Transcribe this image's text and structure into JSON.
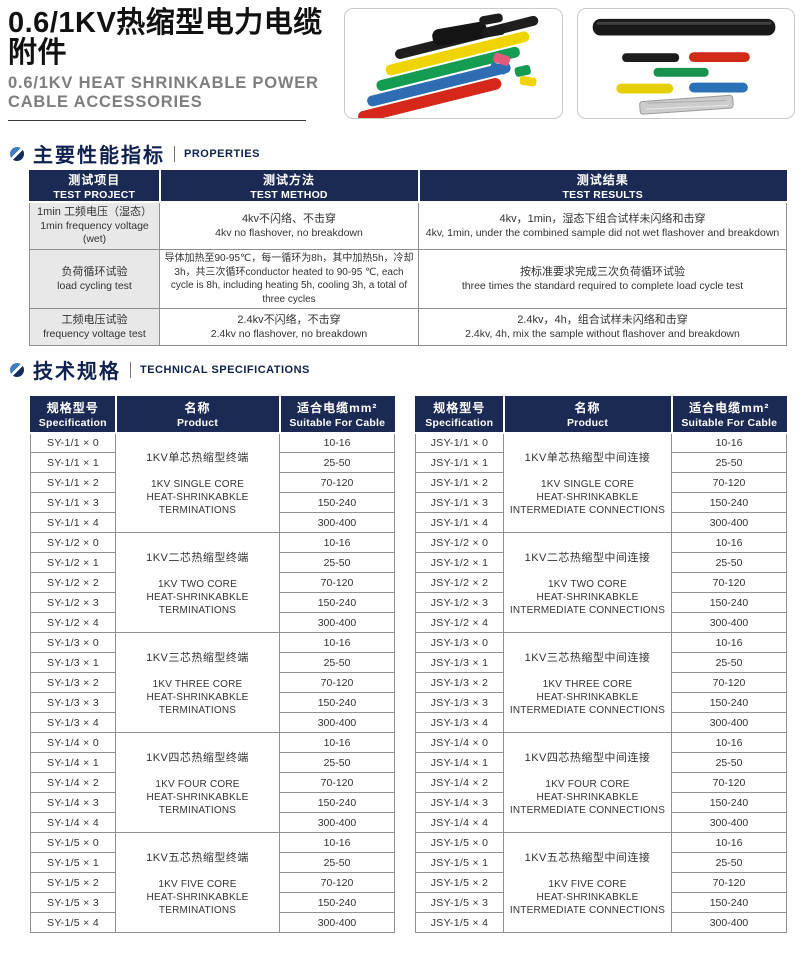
{
  "header": {
    "title_zh": "0.6/1KV热缩型电力电缆附件",
    "title_en_line1": "0.6/1KV HEAT SHRINKABLE POWER",
    "title_en_line2": "CABLE ACCESSORIES"
  },
  "icons": {
    "section_bullet": "dual-tone-circle-icon"
  },
  "theme": {
    "header_navy": "#1b2a55",
    "table_border": "#8f8f8f",
    "project_cell_bg": "#e8e8e8",
    "accent_light_blue": "#3f7fbf",
    "subtitle_gray": "#7e7e7e"
  },
  "properties": {
    "heading_zh": "主要性能指标",
    "heading_en": "PROPERTIES",
    "headers": [
      {
        "zh": "测试项目",
        "en": "TEST PROJECT"
      },
      {
        "zh": "测试方法",
        "en": "TEST METHOD"
      },
      {
        "zh": "测试结果",
        "en": "TEST RESULTS"
      }
    ],
    "rows": [
      {
        "project_zh": "1min 工频电压（湿态）",
        "project_en": "1min frequency voltage (wet)",
        "method_zh": "4kv不闪络、不击穿",
        "method_en": "4kv no flashover, no breakdown",
        "result_zh": "4kv，1min，湿态下组合试样未闪络和击穿",
        "result_en": "4kv, 1min, under the combined sample did not wet flashover and breakdown"
      },
      {
        "project_zh": "负荷循环试验",
        "project_en": "load cycling test",
        "method_zh": "导体加热至90-95℃，每一循环为8h，其中加热5h，冷却3h，共三次循环",
        "method_en": "conductor heated to 90-95 ℃, each cycle is 8h, including heating 5h, cooling 3h, a total of three cycles",
        "result_zh": "按标准要求完成三次负荷循环试验",
        "result_en": "three times the standard required to complete load cycle test"
      },
      {
        "project_zh": "工频电压试验",
        "project_en": "frequency voltage test",
        "method_zh": "2.4kv不闪络，不击穿",
        "method_en": "2.4kv no flashover, no breakdown",
        "result_zh": "2.4kv，4h，组合试样未闪络和击穿",
        "result_en": "2.4kv, 4h, mix the sample without flashover and breakdown"
      }
    ]
  },
  "specs": {
    "heading_zh": "技术规格",
    "heading_en": "TECHNICAL SPECIFICATIONS",
    "col_headers": [
      {
        "zh": "规格型号",
        "en": "Specification"
      },
      {
        "zh": "名称",
        "en": "Product"
      },
      {
        "zh": "适合电缆mm²",
        "en": "Suitable For Cable"
      }
    ],
    "tables": [
      {
        "id": "terminations",
        "groups": [
          {
            "models": [
              "SY-1/1 × 0",
              "SY-1/1 × 1",
              "SY-1/1 × 2",
              "SY-1/1 × 3",
              "SY-1/1 × 4"
            ],
            "product_zh": "1KV单芯热缩型终端",
            "product_en_lines": [
              "1KV SINGLE CORE",
              "HEAT-SHRINKABKLE",
              "TERMINATIONS"
            ],
            "cables": [
              "10-16",
              "25-50",
              "70-120",
              "150-240",
              "300-400"
            ]
          },
          {
            "models": [
              "SY-1/2 × 0",
              "SY-1/2 × 1",
              "SY-1/2 × 2",
              "SY-1/2 × 3",
              "SY-1/2 × 4"
            ],
            "product_zh": "1KV二芯热缩型终端",
            "product_en_lines": [
              "1KV TWO CORE",
              "HEAT-SHRINKABKLE",
              "TERMINATIONS"
            ],
            "cables": [
              "10-16",
              "25-50",
              "70-120",
              "150-240",
              "300-400"
            ]
          },
          {
            "models": [
              "SY-1/3 × 0",
              "SY-1/3 × 1",
              "SY-1/3 × 2",
              "SY-1/3 × 3",
              "SY-1/3 × 4"
            ],
            "product_zh": "1KV三芯热缩型终端",
            "product_en_lines": [
              "1KV THREE CORE",
              "HEAT-SHRINKABKLE",
              "TERMINATIONS"
            ],
            "cables": [
              "10-16",
              "25-50",
              "70-120",
              "150-240",
              "300-400"
            ]
          },
          {
            "models": [
              "SY-1/4 × 0",
              "SY-1/4 × 1",
              "SY-1/4 × 2",
              "SY-1/4 × 3",
              "SY-1/4 × 4"
            ],
            "product_zh": "1KV四芯热缩型终端",
            "product_en_lines": [
              "1KV FOUR CORE",
              "HEAT-SHRINKABKLE",
              "TERMINATIONS"
            ],
            "cables": [
              "10-16",
              "25-50",
              "70-120",
              "150-240",
              "300-400"
            ]
          },
          {
            "models": [
              "SY-1/5 × 0",
              "SY-1/5 × 1",
              "SY-1/5 × 2",
              "SY-1/5 × 3",
              "SY-1/5 × 4"
            ],
            "product_zh": "1KV五芯热缩型终端",
            "product_en_lines": [
              "1KV FIVE CORE",
              "HEAT-SHRINKABKLE",
              "TERMINATIONS"
            ],
            "cables": [
              "10-16",
              "25-50",
              "70-120",
              "150-240",
              "300-400"
            ]
          }
        ]
      },
      {
        "id": "intermediate-connections",
        "groups": [
          {
            "models": [
              "JSY-1/1 × 0",
              "JSY-1/1 × 1",
              "JSY-1/1 × 2",
              "JSY-1/1 × 3",
              "JSY-1/1 × 4"
            ],
            "product_zh": "1KV单芯热缩型中间连接",
            "product_en_lines": [
              "1KV SINGLE CORE",
              "HEAT-SHRINKABKLE",
              "INTERMEDIATE CONNECTIONS"
            ],
            "cables": [
              "10-16",
              "25-50",
              "70-120",
              "150-240",
              "300-400"
            ]
          },
          {
            "models": [
              "JSY-1/2 × 0",
              "JSY-1/2 × 1",
              "JSY-1/2 × 2",
              "JSY-1/2 × 3",
              "JSY-1/2 × 4"
            ],
            "product_zh": "1KV二芯热缩型中间连接",
            "product_en_lines": [
              "1KV TWO CORE",
              "HEAT-SHRINKABKLE",
              "INTERMEDIATE CONNECTIONS"
            ],
            "cables": [
              "10-16",
              "25-50",
              "70-120",
              "150-240",
              "300-400"
            ]
          },
          {
            "models": [
              "JSY-1/3 × 0",
              "JSY-1/3 × 1",
              "JSY-1/3 × 2",
              "JSY-1/3 × 3",
              "JSY-1/3 × 4"
            ],
            "product_zh": "1KV三芯热缩型中间连接",
            "product_en_lines": [
              "1KV THREE CORE",
              "HEAT-SHRINKABKLE",
              "INTERMEDIATE CONNECTIONS"
            ],
            "cables": [
              "10-16",
              "25-50",
              "70-120",
              "150-240",
              "300-400"
            ]
          },
          {
            "models": [
              "JSY-1/4 × 0",
              "JSY-1/4 × 1",
              "JSY-1/4 × 2",
              "JSY-1/4 × 3",
              "JSY-1/4 × 4"
            ],
            "product_zh": "1KV四芯热缩型中间连接",
            "product_en_lines": [
              "1KV FOUR CORE",
              "HEAT-SHRINKABKLE",
              "INTERMEDIATE CONNECTIONS"
            ],
            "cables": [
              "10-16",
              "25-50",
              "70-120",
              "150-240",
              "300-400"
            ]
          },
          {
            "models": [
              "JSY-1/5 × 0",
              "JSY-1/5 × 1",
              "JSY-1/5 × 2",
              "JSY-1/5 × 3",
              "JSY-1/5 × 4"
            ],
            "product_zh": "1KV五芯热缩型中间连接",
            "product_en_lines": [
              "1KV FIVE CORE",
              "HEAT-SHRINKABKLE",
              "INTERMEDIATE CONNECTIONS"
            ],
            "cables": [
              "10-16",
              "25-50",
              "70-120",
              "150-240",
              "300-400"
            ]
          }
        ]
      }
    ]
  }
}
